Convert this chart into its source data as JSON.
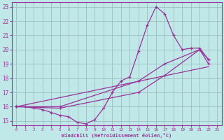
{
  "xlabel": "Windchill (Refroidissement éolien,°C)",
  "bg_color": "#c0e8e8",
  "grid_color": "#9bbfbf",
  "line_color": "#993399",
  "xlim": [
    -0.5,
    23.5
  ],
  "ylim": [
    14.7,
    23.3
  ],
  "xticks": [
    0,
    1,
    2,
    3,
    4,
    5,
    6,
    7,
    8,
    9,
    10,
    11,
    12,
    13,
    14,
    15,
    16,
    17,
    18,
    19,
    20,
    21,
    22,
    23
  ],
  "yticks": [
    15,
    16,
    17,
    18,
    19,
    20,
    21,
    22,
    23
  ],
  "series": [
    {
      "x": [
        0,
        1,
        2,
        3,
        4,
        5,
        6,
        7,
        8,
        9,
        10,
        11,
        12,
        13,
        14,
        15,
        16,
        17,
        18,
        19,
        20,
        21,
        22
      ],
      "y": [
        16.0,
        16.0,
        15.9,
        15.8,
        15.6,
        15.4,
        15.3,
        14.9,
        14.8,
        15.1,
        15.9,
        17.0,
        17.8,
        18.1,
        19.9,
        21.7,
        23.0,
        22.5,
        21.0,
        20.0,
        20.1,
        20.1,
        19.3
      ]
    },
    {
      "x": [
        0,
        5,
        14,
        17,
        21,
        22
      ],
      "y": [
        16.0,
        16.0,
        17.8,
        19.0,
        20.0,
        19.3
      ]
    },
    {
      "x": [
        0,
        5,
        14,
        17,
        21,
        22
      ],
      "y": [
        16.0,
        15.9,
        17.0,
        18.2,
        20.0,
        19.0
      ]
    },
    {
      "x": [
        0,
        22
      ],
      "y": [
        16.0,
        18.8
      ]
    }
  ]
}
